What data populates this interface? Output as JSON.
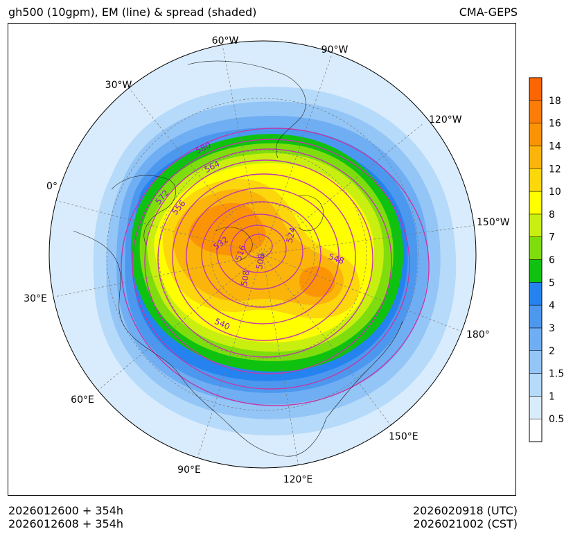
{
  "header": {
    "title": "gh500 (10gpm), EM (line) & spread (shaded)",
    "model": "CMA-GEPS"
  },
  "footer": {
    "init_utc": "2026012600 + 354h",
    "init_cst": "2026012608 + 354h",
    "valid_utc": "2026020918 (UTC)",
    "valid_cst": "2026021002 (CST)"
  },
  "longitude_labels": [
    "60°W",
    "90°W",
    "30°W",
    "120°W",
    "0°",
    "150°W",
    "30°E",
    "180°",
    "60°E",
    "150°E",
    "90°E",
    "120°E"
  ],
  "contour_labels": [
    "580",
    "564",
    "572",
    "556",
    "532",
    "516",
    "524",
    "508",
    "508",
    "548",
    "540"
  ],
  "colorbar": {
    "levels": [
      "0.5",
      "1",
      "1.5",
      "2",
      "3",
      "4",
      "5",
      "6",
      "7",
      "8",
      "10",
      "12",
      "14",
      "16",
      "18"
    ],
    "colors": [
      "#ffffff",
      "#d9ecfd",
      "#b6daf9",
      "#93c5f6",
      "#6faef3",
      "#4d98ef",
      "#2583f0",
      "#0fc20f",
      "#7fdd0e",
      "#c8ef10",
      "#ffff00",
      "#fbd70c",
      "#fbb409",
      "#fb9404",
      "#fb7c08",
      "#fd6402"
    ]
  }
}
